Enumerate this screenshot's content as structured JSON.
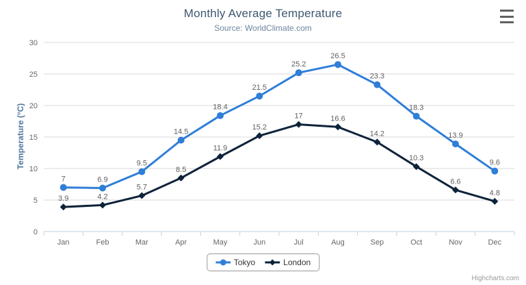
{
  "header": {
    "title": "Monthly Average Temperature",
    "subtitle": "Source: WorldClimate.com"
  },
  "credits": {
    "label": "Highcharts.com"
  },
  "chart_data": {
    "type": "line",
    "title": "Monthly Average Temperature",
    "subtitle": "Source: WorldClimate.com",
    "categories": [
      "Jan",
      "Feb",
      "Mar",
      "Apr",
      "May",
      "Jun",
      "Jul",
      "Aug",
      "Sep",
      "Oct",
      "Nov",
      "Dec"
    ],
    "series": [
      {
        "name": "Tokyo",
        "color": "#2f7ed8",
        "marker": "circle",
        "values": [
          7,
          6.9,
          9.5,
          14.5,
          18.4,
          21.5,
          25.2,
          26.5,
          23.3,
          18.3,
          13.9,
          9.6
        ]
      },
      {
        "name": "London",
        "color": "#0d233a",
        "marker": "diamond",
        "values": [
          3.9,
          4.2,
          5.7,
          8.5,
          11.9,
          15.2,
          17,
          16.6,
          14.2,
          10.3,
          6.6,
          4.8
        ]
      }
    ],
    "xlabel": "",
    "ylabel": "Temperature (°C)",
    "ylim": [
      0,
      30
    ],
    "ytick_step": 5,
    "yticks": [
      0,
      5,
      10,
      15,
      20,
      25,
      30
    ],
    "grid": true,
    "legend_position": "bottom",
    "data_labels": true
  },
  "colors": {
    "title": "#3e576f",
    "subtitle": "#6d869f",
    "axis_label": "#666666",
    "y_axis_title": "#4d759e",
    "gridline": "#d8d8d8",
    "axis_line": "#c0d0e0",
    "data_label": "#606060",
    "legend_text": "#333333",
    "legend_border": "#999999",
    "credits_text": "#999999",
    "menu_icon": "#616161"
  }
}
